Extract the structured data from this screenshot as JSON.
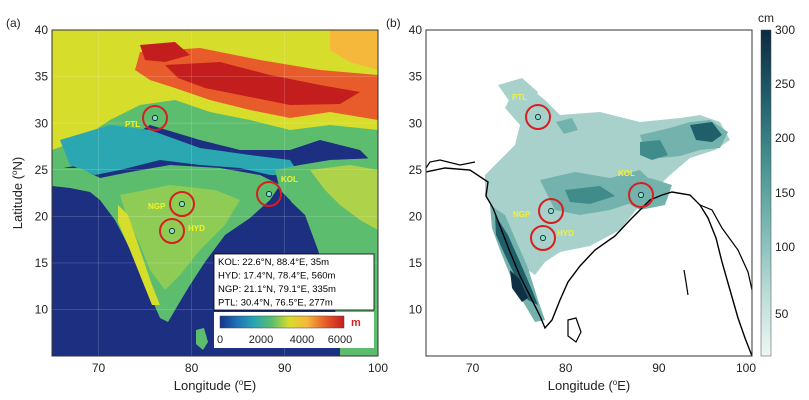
{
  "panels": {
    "a": {
      "label": "(a)",
      "xlabel": "Longitude (",
      "ylabel": "Latitude (",
      "unit_sup": "o",
      "xlabel_suffix": "E)",
      "ylabel_suffix": "N)",
      "x_ticks": [
        "70",
        "80",
        "90",
        "100"
      ],
      "y_ticks": [
        "10",
        "15",
        "20",
        "25",
        "30",
        "35",
        "40"
      ],
      "colorbar": {
        "unit": "m",
        "ticks": [
          "0",
          "2000",
          "4000",
          "6000"
        ],
        "colors": [
          "#16338c",
          "#1f73b8",
          "#2aa7b0",
          "#5cbd6e",
          "#d7dd2b",
          "#f6b83a",
          "#e85b2b",
          "#c41d1d"
        ]
      },
      "info_box": [
        "KOL: 22.6°N, 88.4°E, 35m",
        "HYD: 17.4°N, 78.4°E, 560m",
        "NGP: 21.1°N, 79.1°E, 335m",
        "PTL: 30.4°N, 76.5°E, 277m"
      ]
    },
    "b": {
      "label": "(b)",
      "xlabel": "Longitude (",
      "unit_sup": "o",
      "xlabel_suffix": "E)",
      "x_ticks": [
        "70",
        "80",
        "90",
        "100"
      ],
      "y_ticks": [
        "10",
        "15",
        "20",
        "25",
        "30",
        "35",
        "40"
      ],
      "colorbar": {
        "unit": "cm",
        "ticks": [
          "50",
          "100",
          "150",
          "200",
          "250",
          "300"
        ],
        "colors": [
          "#e9f4f2",
          "#a9d1cc",
          "#74b2ad",
          "#3f8c8b",
          "#1f5f6a",
          "#0f2f44"
        ]
      }
    }
  },
  "stations": [
    {
      "code": "PTL",
      "lon": 76.5,
      "lat": 30.4
    },
    {
      "code": "NGP",
      "lon": 79.1,
      "lat": 21.1
    },
    {
      "code": "HYD",
      "lon": 78.4,
      "lat": 17.4
    },
    {
      "code": "KOL",
      "lon": 88.4,
      "lat": 22.6
    }
  ],
  "colors": {
    "station_ring": "#d62020",
    "station_dot": "#7de0d0",
    "station_label": "#f4f12a",
    "ocean": "#1c2f80",
    "coast": "#000000"
  }
}
